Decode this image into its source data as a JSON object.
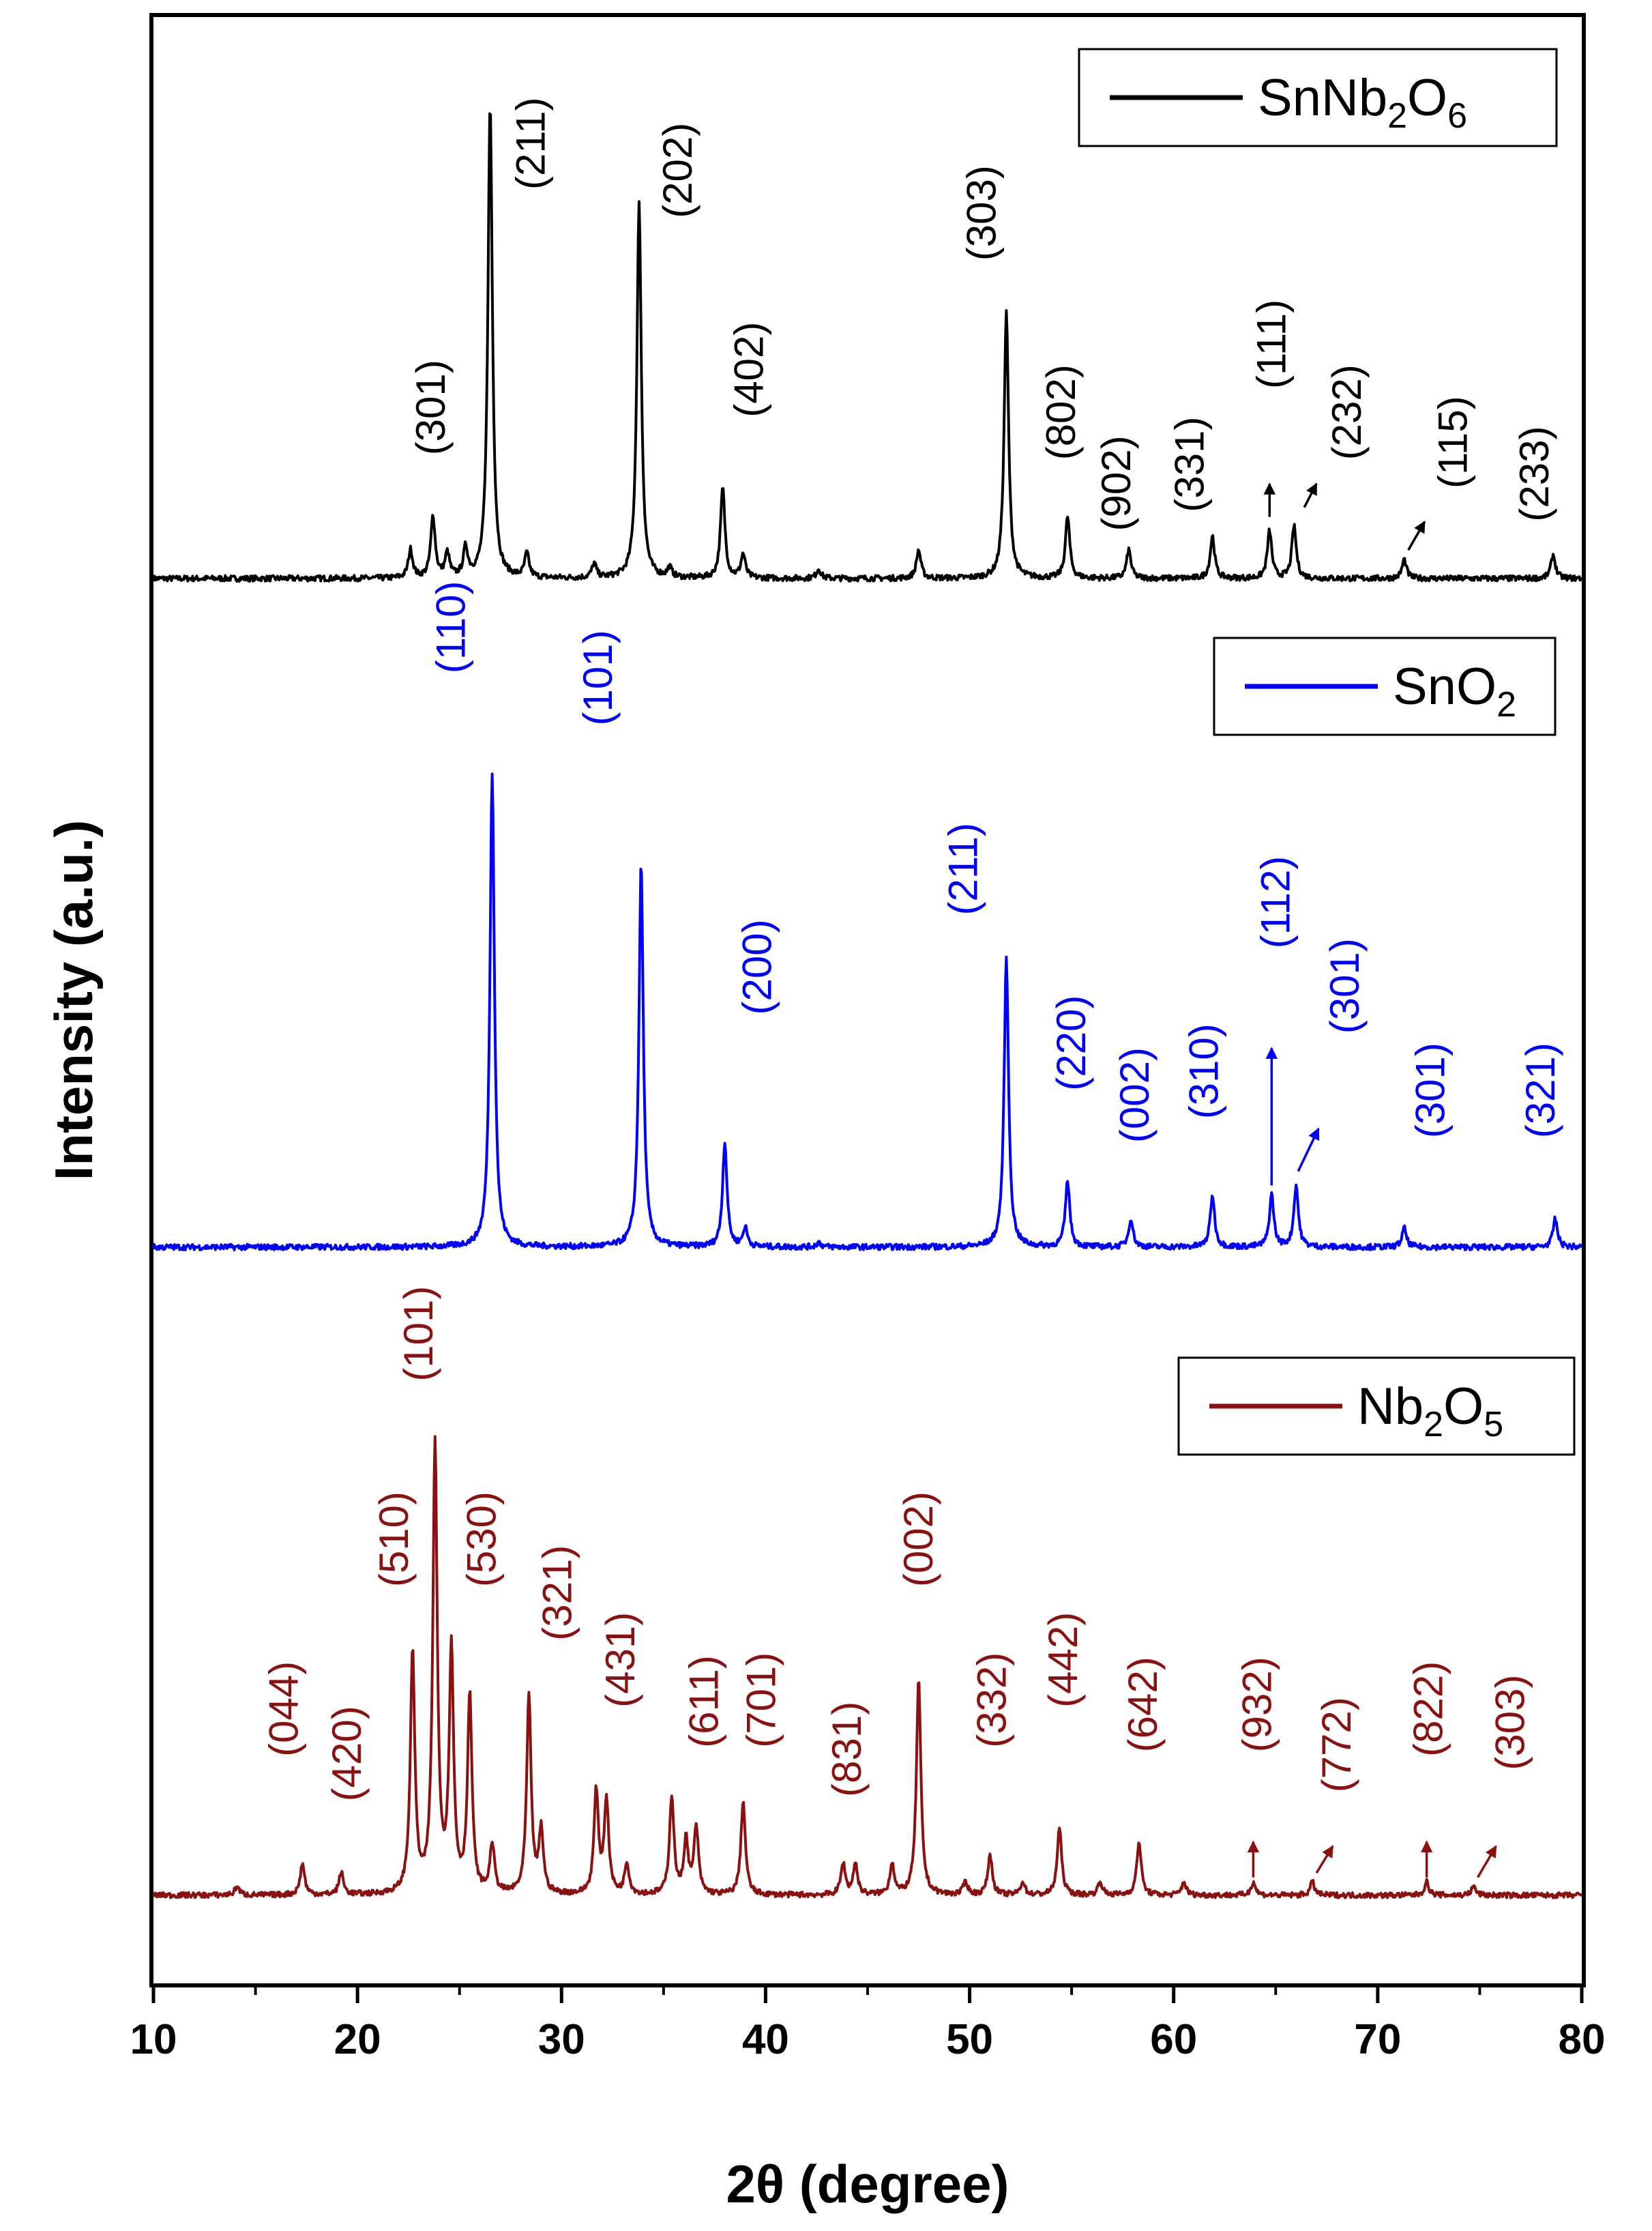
{
  "chart_data": {
    "type": "line",
    "title": "",
    "xlabel": "2θ (degree)",
    "ylabel": "Intensity (a.u.)",
    "xlim": [
      10,
      80
    ],
    "xticks": [
      10,
      20,
      30,
      40,
      50,
      60,
      70,
      80
    ],
    "xtick_labels": [
      "10",
      "20",
      "30",
      "40",
      "50",
      "60",
      "70",
      "80"
    ],
    "legend_position": "top-right of each panel",
    "series": [
      {
        "name": "SnNb2O6",
        "legend": {
          "base": "SnNb",
          "sub1": "2",
          "mid": "O",
          "sub2": "6"
        },
        "color": "#000000",
        "baseline": 0,
        "peaks": [
          {
            "x": 22.6,
            "h": 0.06
          },
          {
            "x": 23.7,
            "h": 0.13
          },
          {
            "x": 24.4,
            "h": 0.05
          },
          {
            "x": 25.3,
            "h": 0.06
          },
          {
            "x": 26.5,
            "h": 1.0
          },
          {
            "x": 28.3,
            "h": 0.05
          },
          {
            "x": 31.6,
            "h": 0.03
          },
          {
            "x": 33.8,
            "h": 0.79
          },
          {
            "x": 35.3,
            "h": 0.02
          },
          {
            "x": 37.9,
            "h": 0.19
          },
          {
            "x": 38.9,
            "h": 0.05
          },
          {
            "x": 42.6,
            "h": 0.02
          },
          {
            "x": 47.5,
            "h": 0.06
          },
          {
            "x": 51.8,
            "h": 0.56
          },
          {
            "x": 54.8,
            "h": 0.13
          },
          {
            "x": 57.8,
            "h": 0.06
          },
          {
            "x": 61.9,
            "h": 0.09
          },
          {
            "x": 64.7,
            "h": 0.1
          },
          {
            "x": 65.9,
            "h": 0.11
          },
          {
            "x": 71.3,
            "h": 0.04
          },
          {
            "x": 78.6,
            "h": 0.05
          }
        ],
        "labels": [
          {
            "text": "(301)",
            "x": 23.6,
            "y": 0.26
          },
          {
            "text": "(211)",
            "x": 28.5,
            "y": 0.82
          },
          {
            "text": "(202)",
            "x": 35.7,
            "y": 0.76
          },
          {
            "text": "(402)",
            "x": 39.2,
            "y": 0.34
          },
          {
            "text": "(303)",
            "x": 50.6,
            "y": 0.67
          },
          {
            "text": "(802)",
            "x": 54.5,
            "y": 0.25
          },
          {
            "text": "(902)",
            "x": 57.2,
            "y": 0.1
          },
          {
            "text": "(331)",
            "x": 60.8,
            "y": 0.14
          },
          {
            "text": "(111)",
            "x": 64.8,
            "y": 0.4
          },
          {
            "text": "(232)",
            "x": 68.5,
            "y": 0.25
          },
          {
            "text": "(115)",
            "x": 73.7,
            "y": 0.19
          },
          {
            "text": "(233)",
            "x": 77.7,
            "y": 0.12
          }
        ],
        "arrows": [
          {
            "x1": 64.7,
            "y1": 0.13,
            "x2": 64.7,
            "y2": 0.2
          },
          {
            "x1": 66.4,
            "y1": 0.15,
            "x2": 67.0,
            "y2": 0.2
          },
          {
            "x1": 71.5,
            "y1": 0.06,
            "x2": 72.3,
            "y2": 0.12
          }
        ]
      },
      {
        "name": "SnO2",
        "legend": {
          "base": "SnO",
          "sub1": "2",
          "mid": "",
          "sub2": ""
        },
        "color": "#0000ff",
        "baseline": 0,
        "peaks": [
          {
            "x": 26.6,
            "h": 1.0
          },
          {
            "x": 33.9,
            "h": 0.81
          },
          {
            "x": 38.0,
            "h": 0.22
          },
          {
            "x": 39.0,
            "h": 0.04
          },
          {
            "x": 42.6,
            "h": 0.01
          },
          {
            "x": 51.8,
            "h": 0.61
          },
          {
            "x": 54.8,
            "h": 0.14
          },
          {
            "x": 57.9,
            "h": 0.06
          },
          {
            "x": 61.9,
            "h": 0.11
          },
          {
            "x": 64.8,
            "h": 0.11
          },
          {
            "x": 66.0,
            "h": 0.13
          },
          {
            "x": 71.3,
            "h": 0.04
          },
          {
            "x": 78.7,
            "h": 0.06
          }
        ],
        "labels": [
          {
            "text": "(110)",
            "x": 24.6,
            "y": 1.21
          },
          {
            "text": "(101)",
            "x": 31.8,
            "y": 1.1
          },
          {
            "text": "(200)",
            "x": 39.6,
            "y": 0.49
          },
          {
            "text": "(211)",
            "x": 49.7,
            "y": 0.7
          },
          {
            "text": "(220)",
            "x": 55.0,
            "y": 0.33
          },
          {
            "text": "(002)",
            "x": 58.1,
            "y": 0.22
          },
          {
            "text": "(310)",
            "x": 61.5,
            "y": 0.27
          },
          {
            "text": "(112)",
            "x": 65.0,
            "y": 0.63
          },
          {
            "text": "(301)",
            "x": 68.4,
            "y": 0.45
          },
          {
            "text": "(301)",
            "x": 72.6,
            "y": 0.23
          },
          {
            "text": "(321)",
            "x": 78.0,
            "y": 0.23
          }
        ],
        "arrows": [
          {
            "x1": 64.8,
            "y1": 0.13,
            "x2": 64.8,
            "y2": 0.42
          },
          {
            "x1": 66.1,
            "y1": 0.16,
            "x2": 67.1,
            "y2": 0.25
          }
        ]
      },
      {
        "name": "Nb2O5",
        "legend": {
          "base": "Nb",
          "sub1": "2",
          "mid": "O",
          "sub2": "5"
        },
        "color": "#8b1010",
        "baseline": 0,
        "peaks": [
          {
            "x": 14.1,
            "h": 0.02
          },
          {
            "x": 17.3,
            "h": 0.07
          },
          {
            "x": 19.2,
            "h": 0.05
          },
          {
            "x": 22.7,
            "h": 0.54
          },
          {
            "x": 23.8,
            "h": 1.0
          },
          {
            "x": 24.6,
            "h": 0.54
          },
          {
            "x": 25.5,
            "h": 0.44
          },
          {
            "x": 26.6,
            "h": 0.11
          },
          {
            "x": 28.4,
            "h": 0.44
          },
          {
            "x": 29.0,
            "h": 0.14
          },
          {
            "x": 31.7,
            "h": 0.23
          },
          {
            "x": 32.2,
            "h": 0.21
          },
          {
            "x": 33.2,
            "h": 0.07
          },
          {
            "x": 35.4,
            "h": 0.22
          },
          {
            "x": 36.1,
            "h": 0.12
          },
          {
            "x": 36.6,
            "h": 0.15
          },
          {
            "x": 38.9,
            "h": 0.21
          },
          {
            "x": 43.8,
            "h": 0.07
          },
          {
            "x": 44.4,
            "h": 0.07
          },
          {
            "x": 46.2,
            "h": 0.07
          },
          {
            "x": 47.5,
            "h": 0.48
          },
          {
            "x": 49.8,
            "h": 0.03
          },
          {
            "x": 51.0,
            "h": 0.09
          },
          {
            "x": 52.6,
            "h": 0.03
          },
          {
            "x": 54.4,
            "h": 0.15
          },
          {
            "x": 56.4,
            "h": 0.03
          },
          {
            "x": 58.3,
            "h": 0.12
          },
          {
            "x": 60.5,
            "h": 0.03
          },
          {
            "x": 63.9,
            "h": 0.03
          },
          {
            "x": 66.8,
            "h": 0.03
          },
          {
            "x": 72.4,
            "h": 0.03
          },
          {
            "x": 74.7,
            "h": 0.02
          }
        ],
        "labels": [
          {
            "text": "(044)",
            "x": 16.4,
            "y": 0.31
          },
          {
            "text": "(420)",
            "x": 19.5,
            "y": 0.21
          },
          {
            "text": "(510)",
            "x": 21.8,
            "y": 0.69
          },
          {
            "text": "(101)",
            "x": 23.0,
            "y": 1.15
          },
          {
            "text": "(530)",
            "x": 26.1,
            "y": 0.69
          },
          {
            "text": "(321)",
            "x": 29.8,
            "y": 0.57
          },
          {
            "text": "(431)",
            "x": 32.9,
            "y": 0.42
          },
          {
            "text": "(611)",
            "x": 37.0,
            "y": 0.33
          },
          {
            "text": "(701)",
            "x": 39.8,
            "y": 0.33
          },
          {
            "text": "(831)",
            "x": 44.0,
            "y": 0.22
          },
          {
            "text": "(002)",
            "x": 47.5,
            "y": 0.69
          },
          {
            "text": "(332)",
            "x": 51.1,
            "y": 0.33
          },
          {
            "text": "(442)",
            "x": 54.6,
            "y": 0.42
          },
          {
            "text": "(642)",
            "x": 58.5,
            "y": 0.32
          },
          {
            "text": "(932)",
            "x": 64.1,
            "y": 0.32
          },
          {
            "text": "(772)",
            "x": 68.0,
            "y": 0.23
          },
          {
            "text": "(822)",
            "x": 72.5,
            "y": 0.31
          },
          {
            "text": "(303)",
            "x": 76.5,
            "y": 0.28
          }
        ],
        "arrows": [
          {
            "x1": 63.9,
            "y1": 0.04,
            "x2": 63.9,
            "y2": 0.12
          },
          {
            "x1": 67.0,
            "y1": 0.05,
            "x2": 67.8,
            "y2": 0.11
          },
          {
            "x1": 72.4,
            "y1": 0.04,
            "x2": 72.4,
            "y2": 0.12
          },
          {
            "x1": 74.9,
            "y1": 0.04,
            "x2": 75.8,
            "y2": 0.11
          }
        ]
      }
    ]
  }
}
